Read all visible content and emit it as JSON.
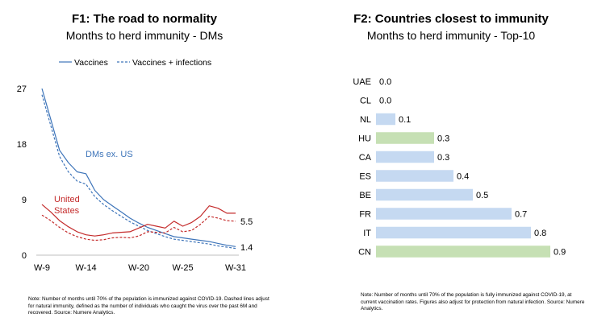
{
  "colors": {
    "vaccines": "#3d74b9",
    "us": "#c42b2b",
    "bar_blue": "#c5d9f1",
    "bar_green": "#c6e0b4"
  },
  "left": {
    "title": "F1: The road to normality",
    "subtitle": "Months to herd immunity - DMs",
    "legend": {
      "solid": "Vaccines",
      "dashed": "Vaccines + infections"
    },
    "labels": {
      "dms": "DMs ex. US",
      "us_line1": "United",
      "us_line2": "States",
      "end_us": "5.5",
      "end_dms": "1.4"
    },
    "note": "Note: Number of months until 70% of the population is immunized against COVID-19. Dashed lines adjust for natural immunity, defined as the number of individuals who caught the virus over the past 6M and recovered. Source: Numere Analytics."
  },
  "right": {
    "title": "F2: Countries closest to immunity",
    "subtitle": "Months to herd immunity - Top-10",
    "note": "Note: Number of months until 70% of the population is fully immunized against COVID-19, at current vaccination rates. Figures also adjust for protection from natural infection. Source: Numere Analytics."
  },
  "chart_data": [
    {
      "type": "line",
      "title": "F1: The road to normality",
      "subtitle": "Months to herd immunity - DMs",
      "x": [
        9,
        10,
        11,
        12,
        13,
        14,
        15,
        16,
        17,
        18,
        19,
        20,
        21,
        22,
        23,
        24,
        25,
        26,
        27,
        28,
        29,
        30,
        31
      ],
      "x_ticks": [
        "W-9",
        "W-14",
        "W-20",
        "W-25",
        "W-31"
      ],
      "x_tick_values": [
        9,
        14,
        20,
        25,
        31
      ],
      "y_ticks": [
        "0",
        "9",
        "18",
        "27"
      ],
      "ylim": [
        0,
        28
      ],
      "series": [
        {
          "name": "DMs ex. US",
          "style": "solid",
          "color": "#3d74b9",
          "values": [
            27,
            22,
            17,
            15,
            13.5,
            13.2,
            10.5,
            9.0,
            8.0,
            7.0,
            6.0,
            5.2,
            4.5,
            4.0,
            3.5,
            3.0,
            2.8,
            2.6,
            2.4,
            2.2,
            1.9,
            1.6,
            1.4
          ]
        },
        {
          "name": "DMs ex. US",
          "style": "dashed",
          "color": "#3d74b9",
          "values": [
            26,
            21,
            16,
            13.5,
            12,
            11.5,
            9.5,
            8.2,
            7.2,
            6.3,
            5.4,
            4.7,
            4.0,
            3.5,
            3.0,
            2.6,
            2.4,
            2.2,
            2.0,
            1.8,
            1.5,
            1.3,
            1.1
          ]
        },
        {
          "name": "United States",
          "style": "solid",
          "color": "#c42b2b",
          "values": [
            8.2,
            7.0,
            5.6,
            4.6,
            3.8,
            3.3,
            3.1,
            3.3,
            3.6,
            3.7,
            3.8,
            4.4,
            5.0,
            4.7,
            4.4,
            5.5,
            4.7,
            5.3,
            6.3,
            8.0,
            7.6,
            6.8,
            6.8
          ]
        },
        {
          "name": "United States",
          "style": "dashed",
          "color": "#c42b2b",
          "values": [
            6.5,
            5.6,
            4.5,
            3.6,
            3.0,
            2.6,
            2.4,
            2.5,
            2.8,
            2.9,
            2.8,
            3.1,
            3.8,
            3.7,
            3.6,
            4.5,
            3.8,
            4.0,
            5.0,
            6.3,
            6.0,
            5.6,
            5.5
          ]
        }
      ]
    },
    {
      "type": "bar",
      "orientation": "horizontal",
      "title": "F2: Countries closest to immunity",
      "subtitle": "Months to herd immunity - Top-10",
      "categories": [
        "UAE",
        "CL",
        "NL",
        "HU",
        "CA",
        "ES",
        "BE",
        "FR",
        "IT",
        "CN"
      ],
      "values": [
        0.0,
        0.0,
        0.1,
        0.3,
        0.3,
        0.4,
        0.5,
        0.7,
        0.8,
        0.9
      ],
      "value_labels": [
        "0.0",
        "0.0",
        "0.1",
        "0.3",
        "0.3",
        "0.4",
        "0.5",
        "0.7",
        "0.8",
        "0.9"
      ],
      "highlight": [
        "HU",
        "CN"
      ],
      "xlim": [
        0,
        0.9
      ]
    }
  ]
}
